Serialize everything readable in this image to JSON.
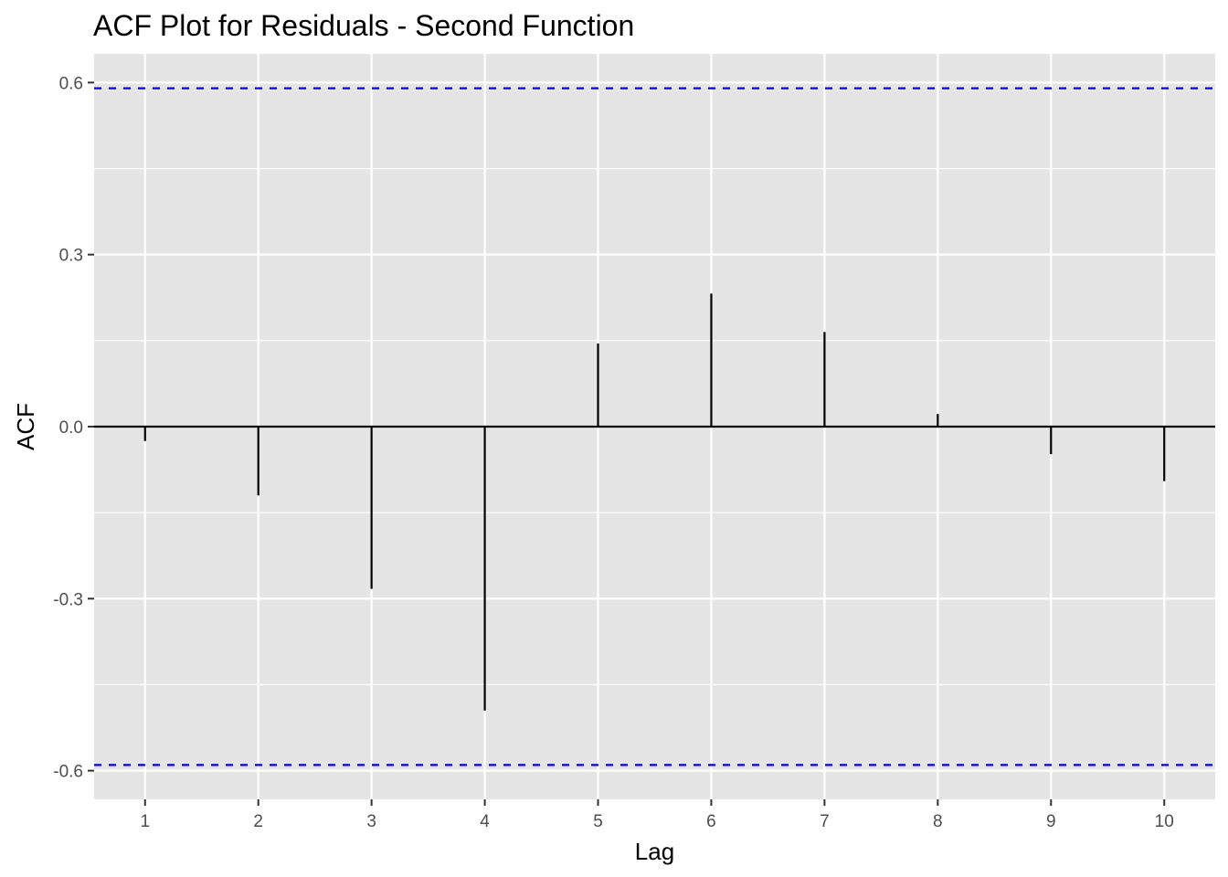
{
  "chart_data": {
    "type": "bar",
    "title": "ACF Plot for Residuals - Second Function",
    "xlabel": "Lag",
    "ylabel": "ACF",
    "x": [
      1,
      2,
      3,
      4,
      5,
      6,
      7,
      8,
      9,
      10
    ],
    "values": [
      -0.025,
      -0.12,
      -0.283,
      -0.495,
      0.145,
      0.232,
      0.165,
      0.022,
      -0.048,
      -0.095
    ],
    "confidence_bounds": [
      0.59,
      -0.59
    ],
    "xlim": [
      0.55,
      10.45
    ],
    "ylim": [
      -0.65,
      0.65
    ],
    "x_ticks": [
      1,
      2,
      3,
      4,
      5,
      6,
      7,
      8,
      9,
      10
    ],
    "x_tick_labels": [
      "1",
      "2",
      "3",
      "4",
      "5",
      "6",
      "7",
      "8",
      "9",
      "10"
    ],
    "y_ticks": [
      0.6,
      0.3,
      0.0,
      -0.3,
      -0.6
    ],
    "y_tick_labels": [
      "0.6",
      "0.3",
      "0.0",
      "-0.3",
      "-0.6"
    ],
    "y_minor_ticks": [
      0.45,
      0.15,
      -0.15,
      -0.45
    ],
    "grid": true,
    "colors": {
      "panel_background": "#e5e5e5",
      "grid": "#ffffff",
      "segment": "#000000",
      "zero_line": "#000000",
      "confidence": "#0000ff"
    }
  }
}
